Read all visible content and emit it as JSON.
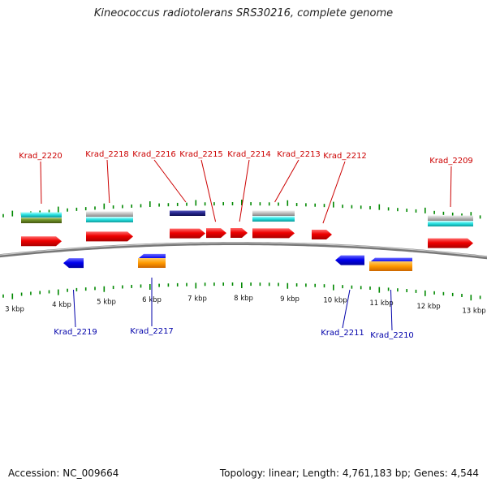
{
  "title": "Kineococcus radiotolerans SRS30216, complete genome",
  "footer": {
    "accession": "Accession: NC_009664",
    "topology": "Topology: linear; Length: 4,761,183 bp; Genes: 4,544"
  },
  "colors": {
    "forward_label": "#cc0000",
    "reverse_label": "#0000aa",
    "tick": "#008800",
    "cds_forward": "#ee0000",
    "cds_reverse": "#0000ee",
    "backbone": "#777777"
  },
  "ticks": {
    "unit": "kbp",
    "labels": [
      "3 kbp",
      "4 kbp",
      "5 kbp",
      "6 kbp",
      "7 kbp",
      "8 kbp",
      "9 kbp",
      "10 kbp",
      "11 kbp",
      "12 kbp",
      "13 kbp"
    ]
  },
  "genes": [
    {
      "name": "Krad_2220",
      "strand": "forward",
      "feature_colors": [
        "#22cccc",
        "#668822"
      ]
    },
    {
      "name": "Krad_2219",
      "strand": "reverse",
      "feature_colors": []
    },
    {
      "name": "Krad_2218",
      "strand": "forward",
      "feature_colors": [
        "#bbbbbb",
        "#22dddd"
      ]
    },
    {
      "name": "Krad_2217",
      "strand": "reverse",
      "feature_colors": [
        "#ff9900"
      ]
    },
    {
      "name": "Krad_2216",
      "strand": "forward",
      "feature_colors": [
        "#222288"
      ]
    },
    {
      "name": "Krad_2215",
      "strand": "forward",
      "feature_colors": []
    },
    {
      "name": "Krad_2214",
      "strand": "forward",
      "feature_colors": []
    },
    {
      "name": "Krad_2213",
      "strand": "forward",
      "feature_colors": [
        "#bbbbbb",
        "#22dddd"
      ]
    },
    {
      "name": "Krad_2212",
      "strand": "forward",
      "feature_colors": []
    },
    {
      "name": "Krad_2211",
      "strand": "reverse",
      "feature_colors": []
    },
    {
      "name": "Krad_2210",
      "strand": "reverse",
      "feature_colors": [
        "#ff9900"
      ]
    },
    {
      "name": "Krad_2209",
      "strand": "forward",
      "feature_colors": [
        "#bbbbbb",
        "#22dddd"
      ]
    }
  ]
}
